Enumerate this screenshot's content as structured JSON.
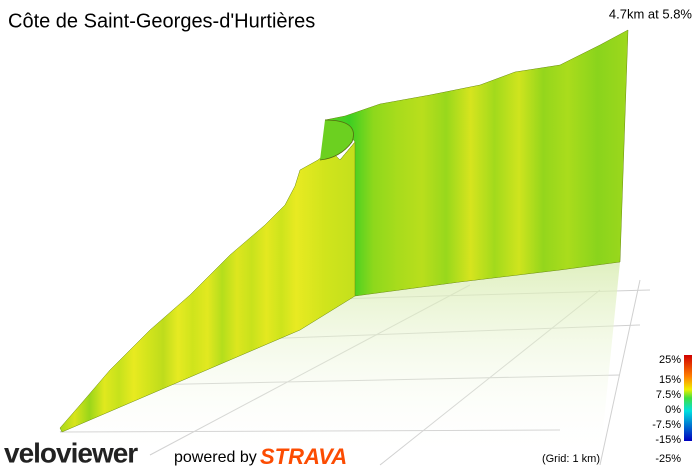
{
  "header": {
    "title": "Côte de Saint-Georges-d'Hurtières",
    "summary": "4.7km at 5.8%"
  },
  "legend": {
    "labels": [
      "25%",
      "15%",
      "7.5%",
      "0%",
      "-7.5%",
      "-15%",
      "-25%"
    ],
    "grid_note": "(Grid: 1 km)"
  },
  "footer": {
    "brand": "veloviewer",
    "powered": "powered by",
    "partner": "STRAVA"
  }
}
